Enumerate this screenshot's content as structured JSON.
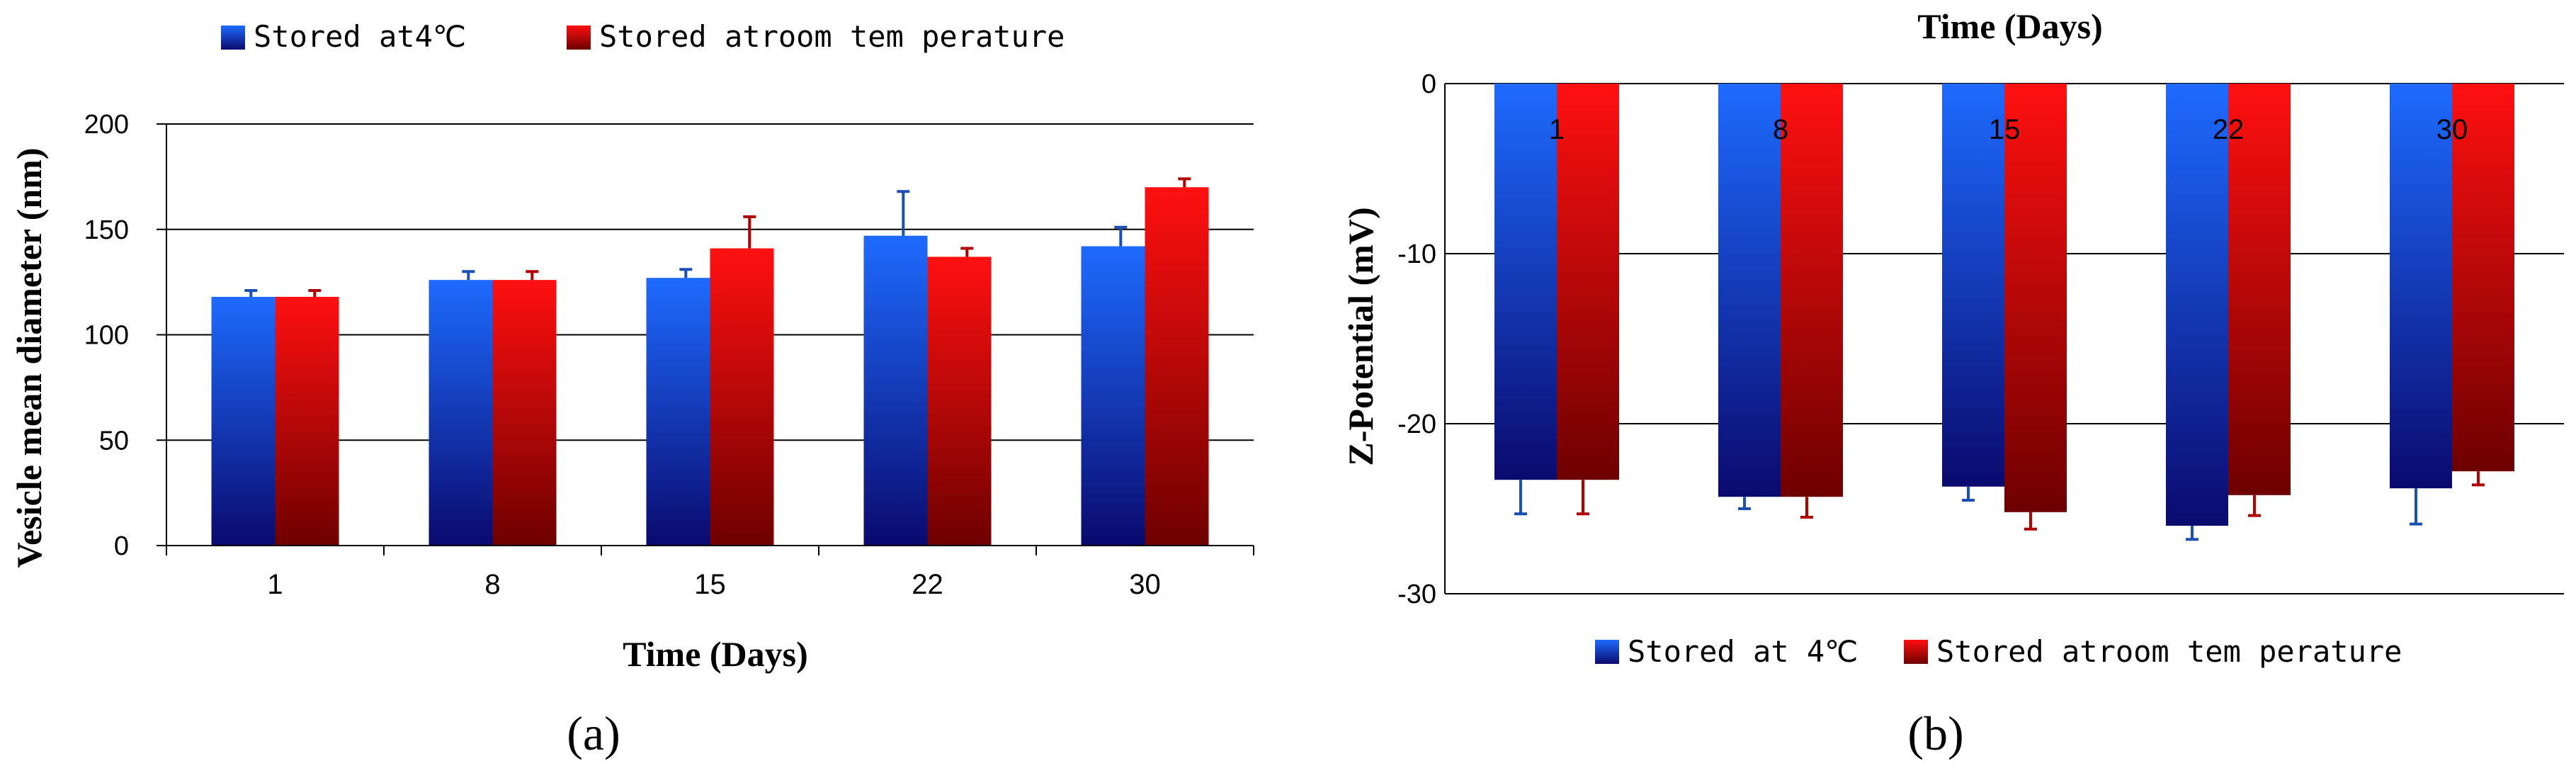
{
  "colors": {
    "series_a_top": "#1e6bff",
    "series_a_bottom": "#0a0a6e",
    "series_b_top": "#ff1010",
    "series_b_bottom": "#6e0000",
    "err_a": "#1a4fb5",
    "err_b": "#b00000",
    "grid": "#000000",
    "text": "#000000"
  },
  "chart_data": [
    {
      "panel_label": "(a)",
      "type": "bar",
      "title": "",
      "xlabel": "Time (Days)",
      "ylabel": "Vesicle mean diameter  (nm)",
      "categories": [
        "1",
        "8",
        "15",
        "22",
        "30"
      ],
      "ylim": [
        0,
        200
      ],
      "yticks": [
        0,
        50,
        100,
        150,
        200
      ],
      "ytick_labels": [
        "0",
        "50",
        "100",
        "150",
        "200"
      ],
      "grid": true,
      "legend_position": "top",
      "series": [
        {
          "name": "Stored at4℃",
          "values": [
            118,
            126,
            127,
            147,
            142
          ],
          "errors": [
            3,
            4,
            4,
            21,
            9
          ]
        },
        {
          "name": "Stored atroom  tem perature",
          "values": [
            118,
            126,
            141,
            137,
            170
          ],
          "errors": [
            3,
            4,
            15,
            4,
            4
          ]
        }
      ]
    },
    {
      "panel_label": "(b)",
      "type": "bar",
      "title": "",
      "xlabel": "Time (Days)",
      "ylabel": "Z-Potential (mV)",
      "categories": [
        "1",
        "8",
        "15",
        "22",
        "30"
      ],
      "ylim": [
        -30,
        0
      ],
      "yticks": [
        0,
        -10,
        -20,
        -30
      ],
      "ytick_labels": [
        "0",
        "-10",
        "-20",
        "-30"
      ],
      "grid": true,
      "legend_position": "bottom",
      "series": [
        {
          "name": "Stored at 4℃",
          "values": [
            -23.3,
            -24.3,
            -23.7,
            -26.0,
            -23.8
          ],
          "errors": [
            2.0,
            0.7,
            0.8,
            0.8,
            2.1
          ]
        },
        {
          "name": "Stored atroom  tem perature",
          "values": [
            -23.3,
            -24.3,
            -25.2,
            -24.2,
            -22.8
          ],
          "errors": [
            2.0,
            1.2,
            1.0,
            1.2,
            0.8
          ]
        }
      ]
    }
  ]
}
